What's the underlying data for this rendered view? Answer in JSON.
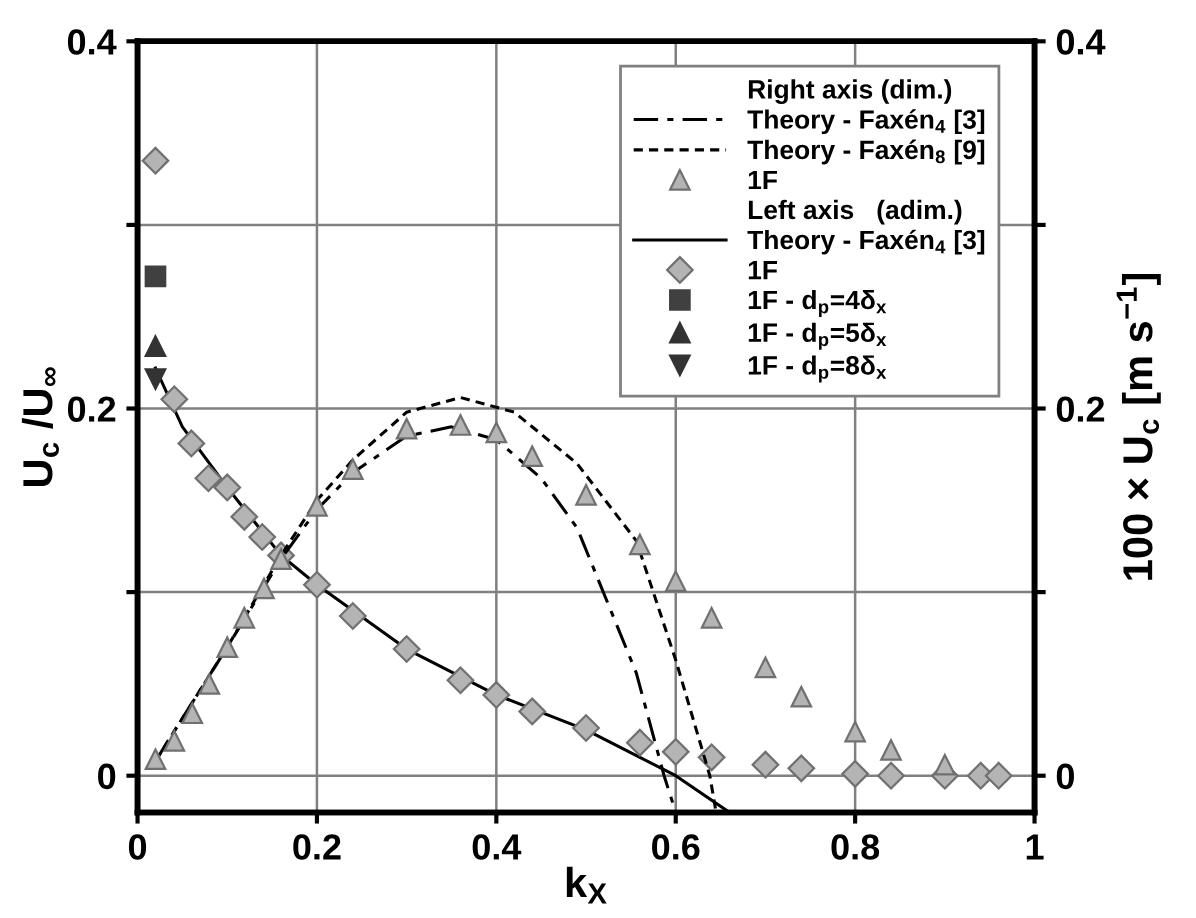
{
  "chart_data": {
    "type": "line",
    "xlabel": "k$_{X}$",
    "ylabel": "U$_{c}$ /U$_{∞}$",
    "y2label": "100 × U$_{c}$ [m s$^{−1}$]",
    "annotations": [
      "Right axis (dim.)",
      "Left axis   (adim.)"
    ],
    "xlim": [
      0,
      1
    ],
    "xticks": [
      0,
      0.2,
      0.4,
      0.6,
      0.8,
      1
    ],
    "ylim": [
      -0.02,
      0.4
    ],
    "yticks": [
      0,
      {
        "value": 0.1,
        "label": null
      },
      0.2,
      {
        "value": 0.3,
        "label": null
      },
      0.4
    ],
    "y2lim": [
      -0.02,
      0.4
    ],
    "y2ticks": [
      0,
      {
        "value": 0.1,
        "label": null
      },
      0.2,
      {
        "value": 0.3,
        "label": null
      },
      0.4
    ],
    "grid": true,
    "legend": "top right",
    "series": [
      {
        "name": "Theory - Faxén$_{4}$ [3]",
        "axis": "y2",
        "line_style": "dashdot",
        "marker": "none",
        "color": "#000000",
        "x": [
          0.02,
          0.1,
          0.16,
          0.2,
          0.24,
          0.3,
          0.35,
          0.4,
          0.45,
          0.49,
          0.556,
          0.587,
          0.6
        ],
        "values": [
          0.008,
          0.07,
          0.118,
          0.145,
          0.165,
          0.185,
          0.19,
          0.183,
          0.162,
          0.135,
          0.056,
          0.0,
          -0.02
        ]
      },
      {
        "name": "Theory - Faxén$_{8}$ [9]",
        "axis": "y2",
        "line_style": "dashed",
        "marker": "none",
        "color": "#000000",
        "x": [
          0.02,
          0.1,
          0.16,
          0.2,
          0.24,
          0.3,
          0.36,
          0.42,
          0.49,
          0.556,
          0.6,
          0.638,
          0.645
        ],
        "values": [
          0.008,
          0.07,
          0.12,
          0.15,
          0.172,
          0.198,
          0.206,
          0.198,
          0.17,
          0.128,
          0.063,
          0.0,
          -0.02
        ]
      },
      {
        "name": "1F",
        "type": "scatter",
        "axis": "y2",
        "marker": "triangle",
        "color": "#b4b4b4",
        "x": [
          0.02,
          0.041,
          0.061,
          0.08,
          0.1,
          0.119,
          0.141,
          0.16,
          0.2,
          0.24,
          0.3,
          0.36,
          0.4,
          0.44,
          0.5,
          0.56,
          0.6,
          0.64,
          0.7,
          0.74,
          0.8,
          0.84,
          0.9
        ],
        "values": [
          0.009,
          0.019,
          0.034,
          0.05,
          0.07,
          0.086,
          0.102,
          0.118,
          0.147,
          0.167,
          0.189,
          0.191,
          0.187,
          0.174,
          0.153,
          0.126,
          0.106,
          0.086,
          0.059,
          0.043,
          0.024,
          0.014,
          0.006
        ]
      },
      {
        "name": "Theory - Faxén$_{4}$ [3]",
        "line_style": "solid",
        "marker": "none",
        "color": "#000000",
        "x": [
          0.02,
          0.05,
          0.1,
          0.16,
          0.2,
          0.3,
          0.4,
          0.5,
          0.6,
          0.66
        ],
        "values": [
          0.222,
          0.19,
          0.157,
          0.12,
          0.104,
          0.069,
          0.044,
          0.025,
          0.0,
          -0.02
        ]
      },
      {
        "name": "1F",
        "type": "scatter",
        "marker": "diamond",
        "color": "#b4b4b4",
        "x": [
          0.02,
          0.041,
          0.06,
          0.079,
          0.1,
          0.119,
          0.139,
          0.16,
          0.2,
          0.24,
          0.3,
          0.36,
          0.4,
          0.44,
          0.5,
          0.56,
          0.6,
          0.64,
          0.7,
          0.74,
          0.8,
          0.84,
          0.9,
          0.94,
          0.96
        ],
        "values": [
          0.335,
          0.205,
          0.181,
          0.162,
          0.157,
          0.141,
          0.13,
          0.12,
          0.104,
          0.087,
          0.069,
          0.052,
          0.044,
          0.035,
          0.026,
          0.018,
          0.013,
          0.01,
          0.006,
          0.004,
          0.001,
          0.0,
          0.0,
          0.0,
          0.0
        ]
      },
      {
        "name": "1F - d$_{p}$=4δ$_{x}$",
        "type": "scatter",
        "marker": "square",
        "color": "#404040",
        "x": [
          0.02
        ],
        "values": [
          0.272
        ]
      },
      {
        "name": "1F - d$_{p}$=5δ$_{x}$",
        "type": "scatter",
        "marker": "triangle",
        "color": "#333333",
        "x": [
          0.02
        ],
        "values": [
          0.234
        ]
      },
      {
        "name": "1F - d$_{p}$=8δ$_{x}$",
        "type": "scatter",
        "marker": "triangle_down",
        "color": "#333333",
        "x": [
          0.02
        ],
        "values": [
          0.216
        ]
      }
    ]
  }
}
